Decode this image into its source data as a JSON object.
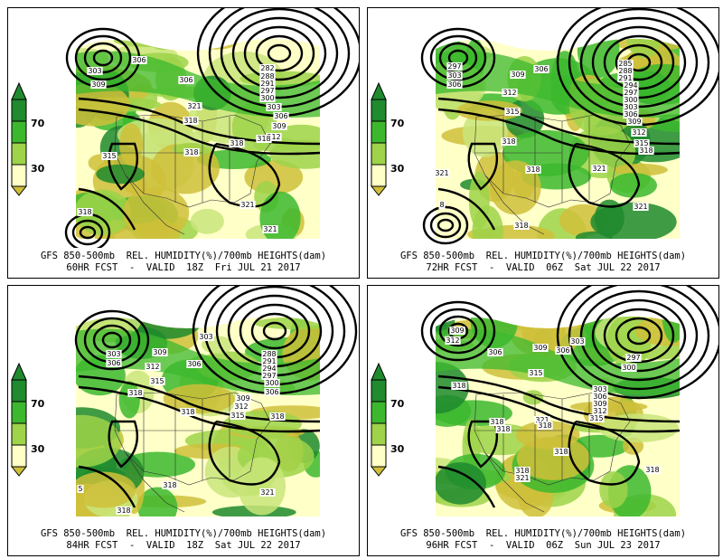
{
  "colors": {
    "dark_green": "#1f8a2e",
    "green": "#3cb82e",
    "light_green": "#9ed34a",
    "lime": "#c9e57a",
    "cream": "#ffffc8",
    "tan": "#cfbf3a",
    "contour": "#000000",
    "background": "#ffffff"
  },
  "legend_scale": {
    "labels": [
      "70",
      "30"
    ],
    "colors_top_to_bottom": [
      "#1f8a2e",
      "#3cb82e",
      "#9ed34a",
      "#ffffc8",
      "#cfbf3a"
    ]
  },
  "panels": [
    {
      "title": "GFS 850-500mb  REL. HUMIDITY(%)/700mb HEIGHTS(dam)",
      "subtitle": "60HR FCST  -  VALID  18Z  Fri JUL 21 2017",
      "contour_labels": [
        "303",
        "306",
        "306",
        "309",
        "282",
        "288",
        "291",
        "297",
        "300",
        "303",
        "306",
        "309",
        "312",
        "315",
        "318",
        "318",
        "321",
        "318",
        "318",
        "321",
        "321",
        "318"
      ]
    },
    {
      "title": "GFS 850-500mb  REL. HUMIDITY(%)/700mb HEIGHTS(dam)",
      "subtitle": "72HR FCST  -  VALID  06Z  Sat JUL 22 2017",
      "contour_labels": [
        "297",
        "303",
        "306",
        "309",
        "306",
        "312",
        "285",
        "288",
        "291",
        "294",
        "297",
        "300",
        "303",
        "306",
        "309",
        "312",
        "315",
        "318",
        "315",
        "318",
        "318",
        "321",
        "321",
        "318",
        "321",
        "8"
      ]
    },
    {
      "title": "GFS 850-500mb  REL. HUMIDITY(%)/700mb HEIGHTS(dam)",
      "subtitle": "84HR FCST  -  VALID  18Z  Sat JUL 22 2017",
      "contour_labels": [
        "303",
        "306",
        "309",
        "312",
        "306",
        "303",
        "315",
        "288",
        "291",
        "294",
        "297",
        "300",
        "306",
        "309",
        "312",
        "315",
        "318",
        "318",
        "318",
        "321",
        "318",
        "318",
        "5"
      ]
    },
    {
      "title": "GFS 850-500mb  REL. HUMIDITY(%)/700mb HEIGHTS(dam)",
      "subtitle": "96HR FCST  -  VALID  06Z  Sun JUL 23 2017",
      "contour_labels": [
        "309",
        "312",
        "306",
        "309",
        "306",
        "303",
        "297",
        "300",
        "315",
        "303",
        "306",
        "309",
        "312",
        "315",
        "318",
        "318",
        "318",
        "321",
        "318",
        "318",
        "318",
        "321",
        "318"
      ]
    }
  ]
}
